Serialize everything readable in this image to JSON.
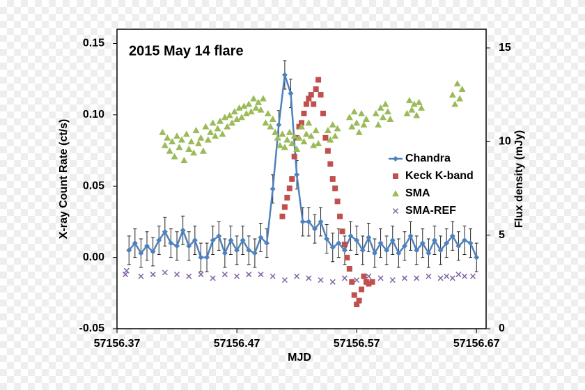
{
  "chart_data": {
    "type": "scatter",
    "title": "2015 May 14 flare",
    "x_label": "MJD",
    "y_label": "X-ray Count Rate  (ct/s)",
    "y2_label": "Flux density (mJy)",
    "xlim": [
      57156.37,
      57156.678
    ],
    "xticks": [
      57156.37,
      57156.47,
      57156.57,
      57156.67
    ],
    "ylim": [
      -0.05,
      0.16
    ],
    "yticks": [
      {
        "value": -0.05,
        "label": "-0.05"
      },
      {
        "value": 0,
        "label": "0.00"
      },
      {
        "value": 0.05,
        "label": "0.05"
      },
      {
        "value": 0.1,
        "label": "0.10"
      },
      {
        "value": 0.15,
        "label": "0.15"
      }
    ],
    "y2lim": [
      0,
      16
    ],
    "y2ticks": [
      0,
      5,
      10,
      15
    ],
    "legend": "right",
    "series": [
      {
        "name": "Chandra",
        "color": "#4f81bd",
        "marker": "diamond",
        "line": true,
        "error": 0.01,
        "x": [
          57156.38,
          57156.385,
          57156.39,
          57156.395,
          57156.4,
          57156.405,
          57156.41,
          57156.415,
          57156.42,
          57156.425,
          57156.43,
          57156.435,
          57156.44,
          57156.445,
          57156.45,
          57156.455,
          57156.46,
          57156.465,
          57156.47,
          57156.475,
          57156.48,
          57156.485,
          57156.49,
          57156.495,
          57156.5,
          57156.505,
          57156.51,
          57156.515,
          57156.52,
          57156.525,
          57156.53,
          57156.535,
          57156.54,
          57156.545,
          57156.55,
          57156.555,
          57156.56,
          57156.565,
          57156.57,
          57156.575,
          57156.58,
          57156.585,
          57156.59,
          57156.595,
          57156.6,
          57156.605,
          57156.61,
          57156.615,
          57156.62,
          57156.625,
          57156.63,
          57156.635,
          57156.64,
          57156.645,
          57156.65,
          57156.655,
          57156.66,
          57156.665,
          57156.67
        ],
        "values": [
          0.005,
          0.01,
          0.003,
          0.008,
          0.004,
          0.012,
          0.018,
          0.01,
          0.008,
          0.019,
          0.008,
          0.012,
          0,
          0,
          0.012,
          0.015,
          0.003,
          0.012,
          0.005,
          0.012,
          0.005,
          0.003,
          0.014,
          0.01,
          0.048,
          0.093,
          0.128,
          0.115,
          0.058,
          0.025,
          0.025,
          0.02,
          0.025,
          0.013,
          0.007,
          0.01,
          0.005,
          0.015,
          0.012,
          0.005,
          0.014,
          0.003,
          0.01,
          0.005,
          0.012,
          0.003,
          0.008,
          0.015,
          0.005,
          0.01,
          0.003,
          0.012,
          0.005,
          0.01,
          0.015,
          0.008,
          0.012,
          0.01,
          0
        ]
      },
      {
        "name": "Keck K-band",
        "color": "#c0504d",
        "marker": "square",
        "axis": "y2",
        "x": [
          57156.508,
          57156.51,
          57156.512,
          57156.514,
          57156.516,
          57156.518,
          57156.52,
          57156.522,
          57156.524,
          57156.526,
          57156.528,
          57156.53,
          57156.532,
          57156.534,
          57156.536,
          57156.538,
          57156.54,
          57156.542,
          57156.544,
          57156.546,
          57156.548,
          57156.55,
          57156.552,
          57156.554,
          57156.556,
          57156.558,
          57156.56,
          57156.562,
          57156.564,
          57156.566,
          57156.568,
          57156.57,
          57156.572,
          57156.574,
          57156.576,
          57156.578,
          57156.58,
          57156.583
        ],
        "values": [
          6.0,
          6.5,
          7.0,
          7.5,
          8.0,
          9.2,
          10.2,
          10.8,
          11.0,
          11.5,
          12.0,
          12.3,
          12.5,
          12.0,
          12.8,
          13.3,
          12.5,
          11.5,
          10.2,
          9.5,
          8.8,
          8.0,
          7.5,
          6.8,
          6.0,
          5.2,
          4.5,
          3.8,
          3.2,
          2.5,
          1.8,
          1.3,
          1.5,
          2.1,
          2.8,
          2.5,
          2.4,
          2.5
        ]
      },
      {
        "name": "SMA",
        "color": "#9bbb59",
        "marker": "triangle",
        "axis": "y2",
        "x": [
          57156.408,
          57156.41,
          57156.412,
          57156.414,
          57156.416,
          57156.418,
          57156.42,
          57156.422,
          57156.424,
          57156.426,
          57156.428,
          57156.43,
          57156.432,
          57156.434,
          57156.436,
          57156.438,
          57156.44,
          57156.442,
          57156.444,
          57156.446,
          57156.448,
          57156.45,
          57156.452,
          57156.454,
          57156.456,
          57156.458,
          57156.46,
          57156.462,
          57156.464,
          57156.466,
          57156.468,
          57156.47,
          57156.472,
          57156.474,
          57156.476,
          57156.478,
          57156.48,
          57156.482,
          57156.484,
          57156.486,
          57156.488,
          57156.49,
          57156.492,
          57156.494,
          57156.496,
          57156.498,
          57156.5,
          57156.502,
          57156.504,
          57156.506,
          57156.508,
          57156.51,
          57156.512,
          57156.514,
          57156.516,
          57156.518,
          57156.52,
          57156.522,
          57156.524,
          57156.526,
          57156.528,
          57156.53,
          57156.532,
          57156.534,
          57156.536,
          57156.538,
          57156.546,
          57156.548,
          57156.55,
          57156.552,
          57156.554,
          57156.564,
          57156.566,
          57156.568,
          57156.57,
          57156.572,
          57156.574,
          57156.576,
          57156.578,
          57156.586,
          57156.588,
          57156.59,
          57156.592,
          57156.594,
          57156.596,
          57156.598,
          57156.612,
          57156.614,
          57156.616,
          57156.618,
          57156.62,
          57156.622,
          57156.624,
          57156.65,
          57156.652,
          57156.654,
          57156.656,
          57156.658
        ],
        "values": [
          10.5,
          9.8,
          10.2,
          9.5,
          10.0,
          9.2,
          10.3,
          9.7,
          10.1,
          9.0,
          10.4,
          9.6,
          10.0,
          9.4,
          10.6,
          9.9,
          10.2,
          9.5,
          10.8,
          10.1,
          10.5,
          11.0,
          10.3,
          10.7,
          11.1,
          10.4,
          11.3,
          10.8,
          11.4,
          11.0,
          11.6,
          11.2,
          11.8,
          11.3,
          11.9,
          11.5,
          12.0,
          11.6,
          12.3,
          11.8,
          12.1,
          11.7,
          12.3,
          11.0,
          11.5,
          10.8,
          11.2,
          10.5,
          10.2,
          9.8,
          10.4,
          9.7,
          10.1,
          10.5,
          9.9,
          10.3,
          9.6,
          10.2,
          10.8,
          10.0,
          10.4,
          11.0,
          10.3,
          9.8,
          10.6,
          9.9,
          10.6,
          10.1,
          10.9,
          10.3,
          10.7,
          11.3,
          10.8,
          11.6,
          11.0,
          10.5,
          11.5,
          10.9,
          11.2,
          11.5,
          10.9,
          11.8,
          11.3,
          12.0,
          11.6,
          11.2,
          11.5,
          12.2,
          11.7,
          12.0,
          11.4,
          12.1,
          11.8,
          12.5,
          12.0,
          13.1,
          12.3,
          12.8
        ]
      },
      {
        "name": "SMA-REF",
        "color": "#8064a2",
        "marker": "cross",
        "axis": "y2",
        "x": [
          57156.377,
          57156.378,
          57156.39,
          57156.4,
          57156.41,
          57156.42,
          57156.43,
          57156.44,
          57156.45,
          57156.46,
          57156.47,
          57156.48,
          57156.49,
          57156.5,
          57156.51,
          57156.52,
          57156.53,
          57156.54,
          57156.55,
          57156.56,
          57156.57,
          57156.58,
          57156.59,
          57156.6,
          57156.61,
          57156.62,
          57156.63,
          57156.64,
          57156.645,
          57156.65,
          57156.655,
          57156.66,
          57156.667
        ],
        "values": [
          2.9,
          3.1,
          2.8,
          2.9,
          3.0,
          2.9,
          2.8,
          2.9,
          2.7,
          2.9,
          2.8,
          2.9,
          2.9,
          2.8,
          2.6,
          2.8,
          2.7,
          2.6,
          2.5,
          2.7,
          2.6,
          2.8,
          2.7,
          2.6,
          2.7,
          2.7,
          2.8,
          2.7,
          2.8,
          2.7,
          2.9,
          2.8,
          2.8
        ]
      }
    ]
  }
}
